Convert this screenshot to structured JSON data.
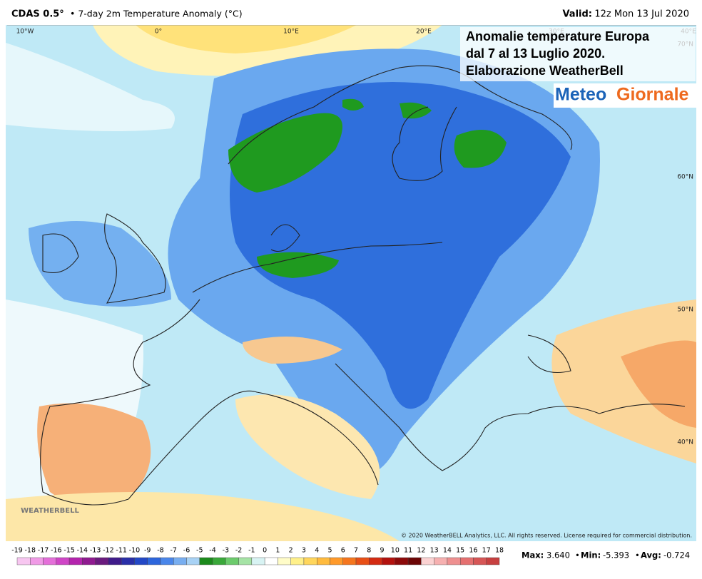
{
  "header": {
    "product": "CDAS 0.5°",
    "subtitle": "• 7-day 2m Temperature Anomaly (°C)",
    "valid_label": "Valid:",
    "valid_value": "12z Mon 13 Jul 2020"
  },
  "overlay": {
    "lines": [
      "Anomalie temperature Europa",
      "dal 7 al 13 Luglio 2020.",
      "Elaborazione WeatherBell"
    ],
    "logo": [
      "Meteo",
      "Giornale"
    ]
  },
  "map": {
    "longitude_labels": [
      "10°W",
      "0°",
      "10°E",
      "20°E",
      "30°E",
      "40°E"
    ],
    "latitude_labels": [
      "70°N",
      "60°N",
      "50°N",
      "40°N"
    ],
    "watermark": "WEATHERBELL",
    "copyright": "© 2020 WeatherBELL Analytics, LLC. All rights reserved. License required for commercial distribution."
  },
  "colorbar": {
    "ticks": [
      -19,
      -18,
      -17,
      -16,
      -15,
      -14,
      -13,
      -12,
      -11,
      -10,
      -9,
      -8,
      -7,
      -6,
      -5,
      -4,
      -3,
      -2,
      -1,
      0,
      1,
      2,
      3,
      4,
      5,
      6,
      7,
      8,
      9,
      10,
      11,
      12,
      13,
      14,
      15,
      16,
      17,
      18
    ],
    "colors": [
      "#f7c6f0",
      "#f09ae6",
      "#e46fd9",
      "#cf45c6",
      "#b424ad",
      "#8f1a90",
      "#6a1a7e",
      "#3f1b8a",
      "#2a2fa8",
      "#2348c6",
      "#2d66dc",
      "#4a86ea",
      "#78aef0",
      "#a8d2f5",
      "#1c8a1c",
      "#3aa83a",
      "#6ccb6c",
      "#a5e3a5",
      "#d8f3f3",
      "#ffffff",
      "#fffcc8",
      "#fff08a",
      "#ffd65c",
      "#ffbb3e",
      "#ff9a2a",
      "#f5761e",
      "#e84f16",
      "#d42b12",
      "#b3120e",
      "#8c0a0a",
      "#6c0606",
      "#fbd2d2",
      "#f6b0b0",
      "#ee9090",
      "#e57070",
      "#d65656",
      "#c74040"
    ]
  },
  "stats": {
    "max_label": "Max:",
    "max": "3.640",
    "min_label": "Min:",
    "min": "-5.393",
    "avg_label": "Avg:",
    "avg": "-0.724"
  }
}
